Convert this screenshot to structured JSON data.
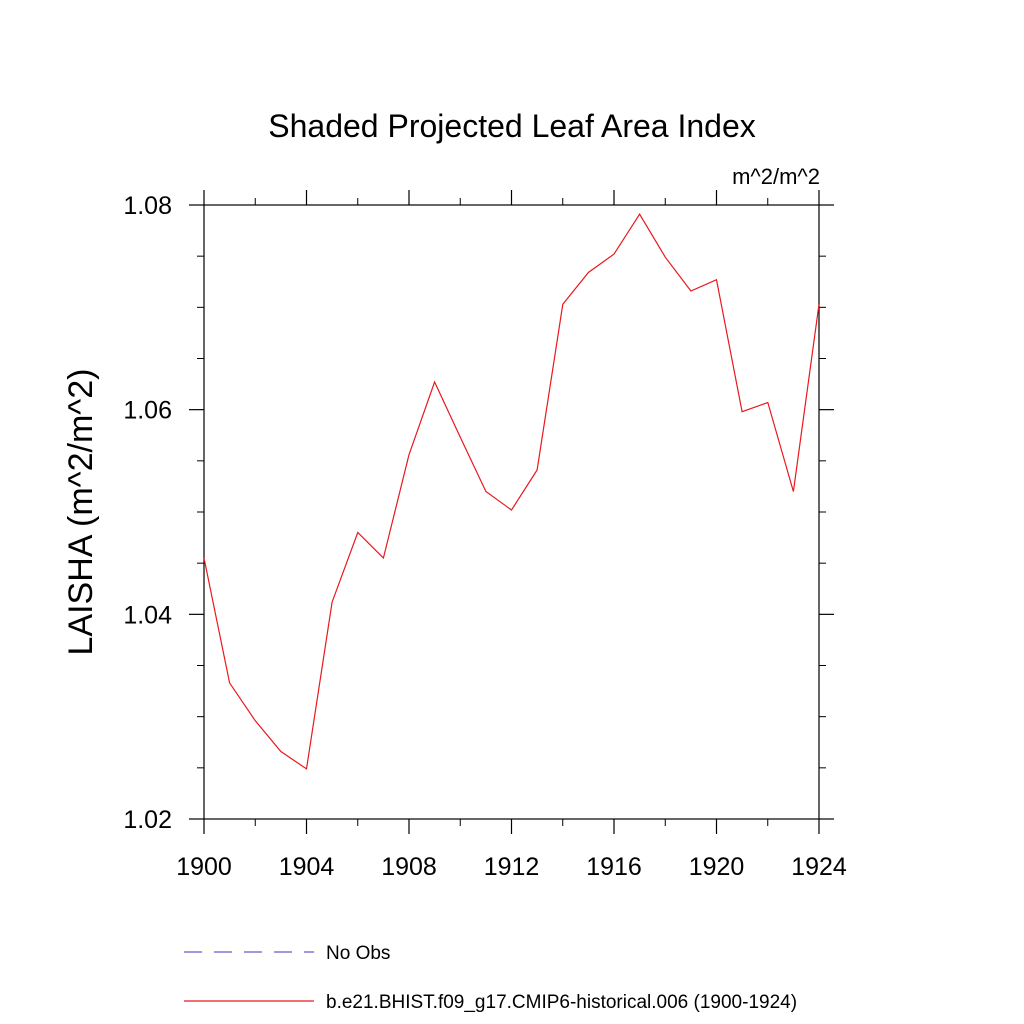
{
  "chart_data": {
    "type": "line",
    "title": "Shaded Projected Leaf Area Index",
    "units_label": "m^2/m^2",
    "xlabel": "",
    "ylabel": "LAISHA  (m^2/m^2)",
    "xlim": [
      1900,
      1924
    ],
    "ylim": [
      1.02,
      1.08
    ],
    "x_ticks": [
      1900,
      1904,
      1908,
      1912,
      1916,
      1920,
      1924
    ],
    "x_tick_labels": [
      "1900",
      "1904",
      "1908",
      "1912",
      "1916",
      "1920",
      "1924"
    ],
    "y_ticks": [
      1.02,
      1.04,
      1.06,
      1.08
    ],
    "y_tick_labels": [
      "1.02",
      "1.04",
      "1.06",
      "1.08"
    ],
    "series": [
      {
        "name": "b.e21.BHIST.f09_g17.CMIP6-historical.006 (1900-1924)",
        "color": "#e8191e",
        "style": "solid",
        "x": [
          1900,
          1901,
          1902,
          1903,
          1904,
          1905,
          1906,
          1907,
          1908,
          1909,
          1910,
          1911,
          1912,
          1913,
          1914,
          1915,
          1916,
          1917,
          1918,
          1919,
          1920,
          1921,
          1922,
          1923,
          1924
        ],
        "values": [
          1.0455,
          1.0333,
          1.0296,
          1.0266,
          1.0249,
          1.0412,
          1.048,
          1.0455,
          1.0556,
          1.0627,
          1.0573,
          1.052,
          1.0502,
          1.0541,
          1.0703,
          1.0734,
          1.0752,
          1.0791,
          1.0749,
          1.0716,
          1.0727,
          1.0598,
          1.0607,
          1.052,
          1.0703
        ]
      }
    ],
    "legend": [
      {
        "label": "No Obs",
        "color": "#6a5acd",
        "style": "dashed"
      },
      {
        "label": "b.e21.BHIST.f09_g17.CMIP6-historical.006 (1900-1924)",
        "color": "#e8191e",
        "style": "solid"
      }
    ]
  }
}
